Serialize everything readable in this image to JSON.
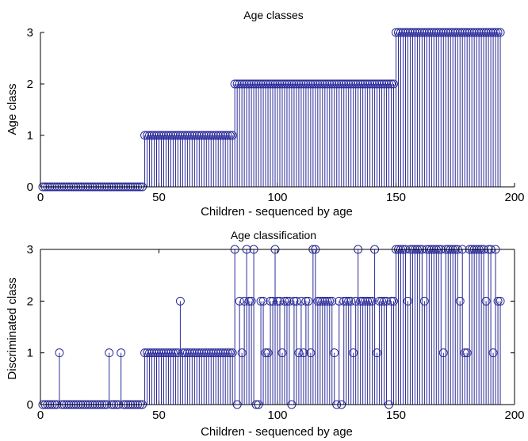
{
  "chart_data": [
    {
      "type": "stem",
      "title": "Age classes",
      "xlabel": "Children - sequenced by age",
      "ylabel": "Age class",
      "xlim": [
        0,
        200
      ],
      "ylim": [
        0,
        3
      ],
      "xticks": [
        0,
        50,
        100,
        150,
        200
      ],
      "yticks": [
        0,
        1,
        2,
        3
      ],
      "grid": false,
      "color": "#2b2b9a",
      "series": [
        {
          "segments": [
            {
              "x_start": 1,
              "x_end": 43,
              "value": 0
            },
            {
              "x_start": 44,
              "x_end": 81,
              "value": 1
            },
            {
              "x_start": 82,
              "x_end": 149,
              "value": 2
            },
            {
              "x_start": 150,
              "x_end": 194,
              "value": 3
            }
          ]
        }
      ]
    },
    {
      "type": "stem",
      "title": "Age classification",
      "xlabel": "Children - sequenced by age",
      "ylabel": "Discriminated class",
      "xlim": [
        0,
        200
      ],
      "ylim": [
        0,
        3
      ],
      "xticks": [
        0,
        50,
        100,
        150,
        200
      ],
      "yticks": [
        0,
        1,
        2,
        3
      ],
      "grid": false,
      "color": "#2b2b9a",
      "series": [
        {
          "x": [
            1,
            2,
            3,
            4,
            5,
            6,
            7,
            8,
            9,
            10,
            11,
            12,
            13,
            14,
            15,
            16,
            17,
            18,
            19,
            20,
            21,
            22,
            23,
            24,
            25,
            26,
            27,
            28,
            29,
            30,
            31,
            32,
            33,
            34,
            35,
            36,
            37,
            38,
            39,
            40,
            41,
            42,
            43,
            44,
            45,
            46,
            47,
            48,
            49,
            50,
            51,
            52,
            53,
            54,
            55,
            56,
            57,
            58,
            59,
            60,
            61,
            62,
            63,
            64,
            65,
            66,
            67,
            68,
            69,
            70,
            71,
            72,
            73,
            74,
            75,
            76,
            77,
            78,
            79,
            80,
            81,
            82,
            83,
            84,
            85,
            86,
            87,
            88,
            89,
            90,
            91,
            92,
            93,
            94,
            95,
            96,
            97,
            98,
            99,
            100,
            101,
            102,
            103,
            104,
            105,
            106,
            107,
            108,
            109,
            110,
            111,
            112,
            113,
            114,
            115,
            116,
            117,
            118,
            119,
            120,
            121,
            122,
            123,
            124,
            125,
            126,
            127,
            128,
            129,
            130,
            131,
            132,
            133,
            134,
            135,
            136,
            137,
            138,
            139,
            140,
            141,
            142,
            143,
            144,
            145,
            146,
            147,
            148,
            149,
            150,
            151,
            152,
            153,
            154,
            155,
            156,
            157,
            158,
            159,
            160,
            161,
            162,
            163,
            164,
            165,
            166,
            167,
            168,
            169,
            170,
            171,
            172,
            173,
            174,
            175,
            176,
            177,
            178,
            179,
            180,
            181,
            182,
            183,
            184,
            185,
            186,
            187,
            188,
            189,
            190,
            191,
            192,
            193,
            194
          ],
          "y": [
            0,
            0,
            0,
            0,
            0,
            0,
            0,
            1,
            0,
            0,
            0,
            0,
            0,
            0,
            0,
            0,
            0,
            0,
            0,
            0,
            0,
            0,
            0,
            0,
            0,
            0,
            0,
            0,
            1,
            0,
            0,
            0,
            0,
            1,
            0,
            0,
            0,
            0,
            0,
            0,
            0,
            0,
            0,
            1,
            1,
            1,
            1,
            1,
            1,
            1,
            1,
            1,
            1,
            1,
            1,
            1,
            1,
            1,
            2,
            1,
            1,
            1,
            1,
            1,
            1,
            1,
            1,
            1,
            1,
            1,
            1,
            1,
            1,
            1,
            1,
            1,
            1,
            1,
            1,
            1,
            1,
            3,
            0,
            2,
            1,
            2,
            3,
            2,
            2,
            3,
            0,
            0,
            2,
            2,
            1,
            1,
            2,
            2,
            3,
            2,
            2,
            1,
            2,
            2,
            2,
            0,
            2,
            2,
            1,
            2,
            1,
            2,
            2,
            1,
            3,
            3,
            2,
            2,
            2,
            2,
            2,
            2,
            2,
            1,
            0,
            2,
            0,
            2,
            2,
            2,
            2,
            1,
            2,
            3,
            2,
            2,
            2,
            2,
            2,
            2,
            3,
            1,
            2,
            2,
            2,
            2,
            0,
            2,
            2,
            3,
            3,
            3,
            3,
            3,
            2,
            3,
            3,
            3,
            3,
            3,
            3,
            2,
            3,
            3,
            3,
            3,
            3,
            3,
            3,
            1,
            3,
            3,
            3,
            3,
            3,
            3,
            2,
            3,
            1,
            1,
            3,
            3,
            3,
            3,
            3,
            3,
            3,
            2,
            3,
            3,
            1,
            3,
            2,
            2
          ]
        }
      ]
    }
  ]
}
